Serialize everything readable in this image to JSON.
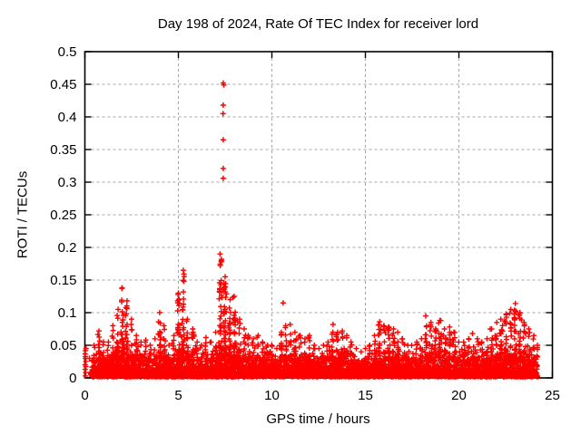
{
  "chart_data": {
    "type": "scatter",
    "title": "Day 198 of 2024, Rate Of TEC Index for receiver lord",
    "xlabel": "GPS time / hours",
    "ylabel": "ROTI / TECUs",
    "xlim": [
      0,
      25
    ],
    "ylim": [
      0,
      0.5
    ],
    "xticks": [
      0,
      5,
      10,
      15,
      20,
      25
    ],
    "xtick_labels": [
      "0",
      "5",
      "10",
      "15",
      "20",
      "25"
    ],
    "yticks": [
      0,
      0.05,
      0.1,
      0.15,
      0.2,
      0.25,
      0.3,
      0.35,
      0.4,
      0.45,
      0.5
    ],
    "ytick_labels": [
      "0",
      "0.05",
      "0.1",
      "0.15",
      "0.2",
      "0.25",
      "0.3",
      "0.35",
      "0.4",
      "0.45",
      "0.5"
    ],
    "grid": true,
    "legend": "none",
    "marker": "plus",
    "marker_half_px": 3,
    "color": "#ff0000",
    "colors": {
      "grid": "#a6a6a6",
      "axis": "#000000",
      "text": "#000000",
      "background": "#ffffff"
    },
    "data_start_hour": 0.3,
    "data_end_hour": 24.2,
    "baseline": {
      "min": 0,
      "typical_max": 0.04,
      "points_per_bin": 50,
      "description": "dense noise floor of ROTI values hugging zero"
    },
    "edge_stack": {
      "t": 0.03,
      "v_min": 0.004,
      "v_max": 0.046,
      "count": 11
    },
    "envelope_bin_hours": 0.25,
    "envelope": [
      [
        0.0,
        0.046
      ],
      [
        0.25,
        0.03
      ],
      [
        0.5,
        0.05
      ],
      [
        0.75,
        0.072
      ],
      [
        1.0,
        0.055
      ],
      [
        1.25,
        0.055
      ],
      [
        1.5,
        0.08
      ],
      [
        1.75,
        0.105
      ],
      [
        2.0,
        0.138
      ],
      [
        2.25,
        0.118
      ],
      [
        2.5,
        0.09
      ],
      [
        2.75,
        0.065
      ],
      [
        3.0,
        0.055
      ],
      [
        3.25,
        0.058
      ],
      [
        3.5,
        0.05
      ],
      [
        3.75,
        0.06
      ],
      [
        4.0,
        0.1
      ],
      [
        4.25,
        0.08
      ],
      [
        4.5,
        0.05
      ],
      [
        4.75,
        0.065
      ],
      [
        5.0,
        0.13
      ],
      [
        5.25,
        0.165
      ],
      [
        5.5,
        0.09
      ],
      [
        5.75,
        0.075
      ],
      [
        6.0,
        0.055
      ],
      [
        6.25,
        0.05
      ],
      [
        6.5,
        0.062
      ],
      [
        6.75,
        0.055
      ],
      [
        7.0,
        0.07
      ],
      [
        7.25,
        0.19
      ],
      [
        7.5,
        0.155
      ],
      [
        7.75,
        0.12
      ],
      [
        8.0,
        0.125
      ],
      [
        8.25,
        0.09
      ],
      [
        8.5,
        0.075
      ],
      [
        8.75,
        0.065
      ],
      [
        9.0,
        0.06
      ],
      [
        9.25,
        0.065
      ],
      [
        9.5,
        0.055
      ],
      [
        9.75,
        0.05
      ],
      [
        10.0,
        0.05
      ],
      [
        10.25,
        0.045
      ],
      [
        10.5,
        0.07
      ],
      [
        10.75,
        0.08
      ],
      [
        11.0,
        0.082
      ],
      [
        11.25,
        0.07
      ],
      [
        11.5,
        0.065
      ],
      [
        11.75,
        0.06
      ],
      [
        12.0,
        0.065
      ],
      [
        12.25,
        0.05
      ],
      [
        12.5,
        0.045
      ],
      [
        12.75,
        0.05
      ],
      [
        13.0,
        0.055
      ],
      [
        13.25,
        0.082
      ],
      [
        13.5,
        0.07
      ],
      [
        13.75,
        0.072
      ],
      [
        14.0,
        0.065
      ],
      [
        14.25,
        0.055
      ],
      [
        14.5,
        0.045
      ],
      [
        14.75,
        0.04
      ],
      [
        15.0,
        0.045
      ],
      [
        15.25,
        0.05
      ],
      [
        15.5,
        0.065
      ],
      [
        15.75,
        0.086
      ],
      [
        16.0,
        0.08
      ],
      [
        16.25,
        0.078
      ],
      [
        16.5,
        0.075
      ],
      [
        16.75,
        0.07
      ],
      [
        17.0,
        0.06
      ],
      [
        17.25,
        0.05
      ],
      [
        17.5,
        0.05
      ],
      [
        17.75,
        0.055
      ],
      [
        18.0,
        0.06
      ],
      [
        18.25,
        0.095
      ],
      [
        18.5,
        0.085
      ],
      [
        18.75,
        0.075
      ],
      [
        19.0,
        0.088
      ],
      [
        19.25,
        0.075
      ],
      [
        19.5,
        0.078
      ],
      [
        19.75,
        0.07
      ],
      [
        20.0,
        0.055
      ],
      [
        20.25,
        0.055
      ],
      [
        20.5,
        0.06
      ],
      [
        20.75,
        0.068
      ],
      [
        21.0,
        0.06
      ],
      [
        21.25,
        0.055
      ],
      [
        21.5,
        0.06
      ],
      [
        21.75,
        0.075
      ],
      [
        22.0,
        0.085
      ],
      [
        22.25,
        0.09
      ],
      [
        22.5,
        0.098
      ],
      [
        22.75,
        0.105
      ],
      [
        23.0,
        0.114
      ],
      [
        23.25,
        0.1
      ],
      [
        23.5,
        0.085
      ],
      [
        23.75,
        0.075
      ],
      [
        24.0,
        0.065
      ],
      [
        24.25,
        0.05
      ]
    ],
    "outliers": [
      [
        7.4,
        0.452
      ],
      [
        7.43,
        0.449
      ],
      [
        7.4,
        0.418
      ],
      [
        7.39,
        0.405
      ],
      [
        7.4,
        0.365
      ],
      [
        7.4,
        0.321
      ],
      [
        7.4,
        0.306
      ],
      [
        10.6,
        0.115
      ]
    ]
  }
}
